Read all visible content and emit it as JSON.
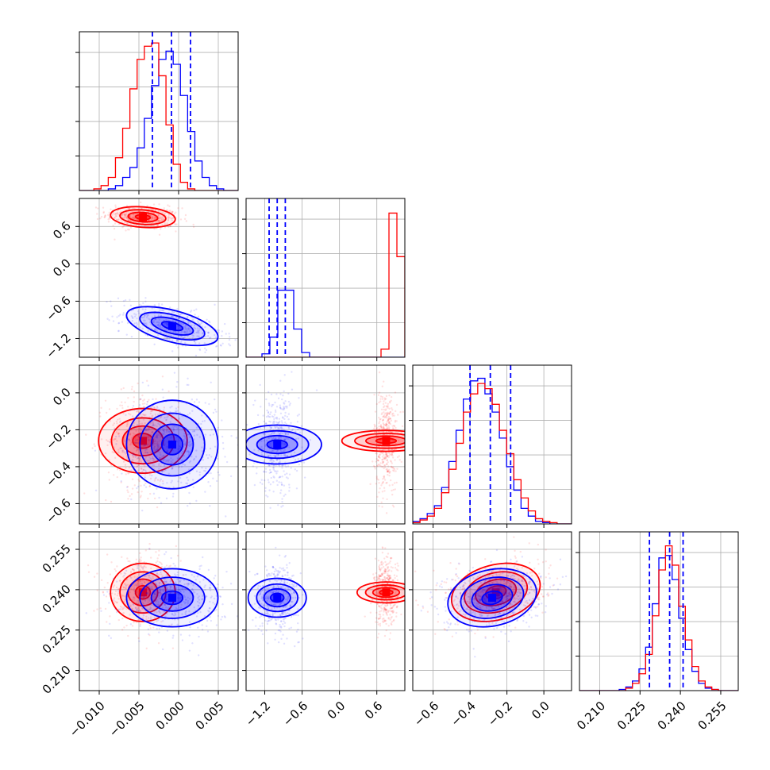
{
  "chart_data": {
    "type": "corner",
    "description_free": true,
    "params": [
      {
        "ticks": [
          "−0.010",
          "−0.005",
          "0.000",
          "0.005"
        ],
        "tick_values": [
          -0.01,
          -0.005,
          0.0,
          0.005
        ],
        "range": [
          -0.0125,
          0.0075
        ]
      },
      {
        "ticks": [
          "−1.2",
          "−0.6",
          "0.0",
          "0.6"
        ],
        "tick_values": [
          -1.2,
          -0.6,
          0.0,
          0.6
        ],
        "range": [
          -1.5,
          1.05
        ]
      },
      {
        "ticks": [
          "−0.6",
          "−0.4",
          "−0.2",
          "0.0"
        ],
        "tick_values": [
          -0.6,
          -0.4,
          -0.2,
          0.0
        ],
        "range": [
          -0.71,
          0.15
        ]
      },
      {
        "ticks": [
          "0.210",
          "0.225",
          "0.240",
          "0.255"
        ],
        "tick_values": [
          0.21,
          0.225,
          0.24,
          0.255
        ],
        "range": [
          0.2025,
          0.2615
        ]
      }
    ],
    "series": [
      {
        "name": "red",
        "color": "#ff0000",
        "mean": [
          -0.0045,
          0.75,
          -0.26,
          0.239
        ],
        "sigma": [
          0.0017,
          0.07,
          0.1,
          0.0045
        ],
        "corr": {
          "0-1": -0.2,
          "0-2": 0.0,
          "0-3": 0.0,
          "1-2": 0.0,
          "1-3": 0.0,
          "2-3": 0.25
        }
      },
      {
        "name": "blue",
        "color": "#0000ff",
        "mean": [
          -0.0008,
          -1.0,
          -0.28,
          0.237
        ],
        "sigma": [
          0.0024,
          0.13,
          0.1,
          0.0045
        ],
        "corr": {
          "0-1": -0.55,
          "0-2": 0.0,
          "0-3": 0.0,
          "1-2": 0.0,
          "1-3": 0.0,
          "2-3": 0.2
        }
      }
    ],
    "quantile_lines": {
      "color": "#0000ff",
      "values": [
        [
          -0.0033,
          -0.0009,
          0.0015
        ],
        [
          -1.13,
          -1.0,
          -0.87
        ],
        [
          -0.4,
          -0.29,
          -0.18
        ],
        [
          0.2285,
          0.236,
          0.241
        ]
      ]
    },
    "histograms": [
      {
        "bins": [
          -0.0125,
          0.0075,
          22
        ],
        "red": [
          0,
          0,
          1,
          3,
          8,
          20,
          38,
          62,
          80,
          88,
          90,
          70,
          40,
          16,
          5,
          1,
          0,
          0,
          0,
          0,
          0,
          0
        ],
        "blue": [
          0,
          0,
          0,
          0,
          1,
          3,
          8,
          14,
          26,
          44,
          64,
          80,
          85,
          77,
          58,
          36,
          18,
          8,
          3,
          1,
          0,
          0
        ],
        "ymax": 92
      },
      {
        "bins": [
          -1.5,
          1.05,
          20
        ],
        "red": [
          0,
          0,
          0,
          0,
          0,
          0,
          0,
          0,
          0,
          0,
          0,
          0,
          0,
          0,
          0,
          0,
          0,
          12,
          215,
          150
        ],
        "blue": [
          0,
          0,
          5,
          30,
          100,
          100,
          42,
          7,
          0,
          0,
          0,
          0,
          0,
          0,
          0,
          0,
          0,
          0,
          0,
          0
        ],
        "ymax": 225
      },
      {
        "bins": [
          -0.71,
          0.15,
          22
        ],
        "red": [
          1,
          3,
          6,
          12,
          24,
          42,
          62,
          86,
          100,
          108,
          104,
          92,
          72,
          54,
          34,
          20,
          10,
          4,
          2,
          1,
          0,
          0
        ],
        "blue": [
          2,
          4,
          8,
          14,
          28,
          48,
          72,
          96,
          110,
          112,
          100,
          86,
          66,
          44,
          26,
          12,
          6,
          2,
          1,
          0,
          0,
          0
        ],
        "ymax": 116
      },
      {
        "bins": [
          0.2025,
          0.2615,
          24
        ],
        "red": [
          0,
          0,
          0,
          0,
          0,
          0,
          0,
          2,
          6,
          14,
          30,
          62,
          100,
          120,
          104,
          70,
          42,
          20,
          8,
          3,
          1,
          0,
          0,
          0
        ],
        "blue": [
          0,
          0,
          0,
          0,
          0,
          0,
          1,
          3,
          8,
          18,
          36,
          72,
          110,
          112,
          92,
          60,
          34,
          16,
          6,
          2,
          1,
          0,
          0,
          0
        ],
        "ymax": 125
      }
    ]
  }
}
